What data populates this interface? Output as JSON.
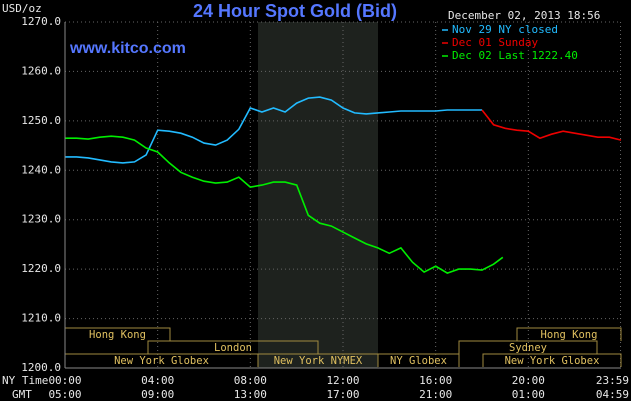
{
  "chart_data": {
    "type": "line",
    "title": "24 Hour Spot Gold (Bid)",
    "y_unit": "USD/oz",
    "site": "www.kitco.com",
    "timestamp": "December 02, 2013 18:56",
    "x_row_labels": [
      "NY Time",
      "GMT"
    ],
    "xlim": [
      0,
      24
    ],
    "xticks": [
      {
        "value": 0,
        "label": "00:00"
      },
      {
        "value": 4,
        "label": "04:00"
      },
      {
        "value": 8,
        "label": "08:00"
      },
      {
        "value": 12,
        "label": "12:00"
      },
      {
        "value": 16,
        "label": "16:00"
      },
      {
        "value": 20,
        "label": "20:00"
      },
      {
        "value": 23.98,
        "label": "23:59"
      }
    ],
    "x2ticks": [
      {
        "value": 0,
        "label": "05:00"
      },
      {
        "value": 4,
        "label": "09:00"
      },
      {
        "value": 8,
        "label": "13:00"
      },
      {
        "value": 12,
        "label": "17:00"
      },
      {
        "value": 16,
        "label": "21:00"
      },
      {
        "value": 20,
        "label": "01:00"
      },
      {
        "value": 23.98,
        "label": "04:59"
      }
    ],
    "ylim": [
      1200,
      1270
    ],
    "yticks": [
      {
        "value": 1200,
        "label": "1200.0"
      },
      {
        "value": 1210,
        "label": "1210.0"
      },
      {
        "value": 1220,
        "label": "1220.0"
      },
      {
        "value": 1230,
        "label": "1230.0"
      },
      {
        "value": 1240,
        "label": "1240.0"
      },
      {
        "value": 1250,
        "label": "1250.0"
      },
      {
        "value": 1260,
        "label": "1260.0"
      },
      {
        "value": 1270,
        "label": "1270.0"
      }
    ],
    "grid": true,
    "sessions": [
      "Hong Kong",
      "London",
      "New York Globex",
      "New York NYMEX",
      "NY Globex",
      "Sydney",
      "New York Globex",
      "Hong Kong"
    ],
    "series": [
      {
        "name": "Nov 29 NY closed",
        "color": "#22bbff",
        "x": [
          0,
          0.5,
          1,
          1.5,
          2,
          2.5,
          3,
          3.5,
          4,
          4.5,
          5,
          5.5,
          6,
          6.5,
          7,
          7.5,
          8,
          8.5,
          9,
          9.5,
          10,
          10.5,
          11,
          11.5,
          12,
          12.5,
          13,
          13.5,
          14,
          14.5,
          15,
          15.5,
          16,
          16.5,
          17,
          17.5,
          18
        ],
        "values": [
          1242.7,
          1242.7,
          1242.5,
          1242.1,
          1241.7,
          1241.5,
          1241.7,
          1243.1,
          1248.1,
          1247.9,
          1247.5,
          1246.7,
          1245.5,
          1245.1,
          1246.1,
          1248.3,
          1252.6,
          1251.8,
          1252.6,
          1251.8,
          1253.6,
          1254.6,
          1254.8,
          1254.2,
          1252.6,
          1251.6,
          1251.4,
          1251.6,
          1251.8,
          1252.0,
          1252.0,
          1252.0,
          1252.0,
          1252.2,
          1252.2,
          1252.2,
          1252.2
        ]
      },
      {
        "name": "Dec 01 Sunday",
        "color": "#ee0000",
        "x": [
          18,
          18.5,
          19,
          19.5,
          20,
          20.5,
          21,
          21.5,
          22,
          22.5,
          23,
          23.5,
          24
        ],
        "values": [
          1252.2,
          1249.2,
          1248.5,
          1248.1,
          1247.9,
          1246.5,
          1247.3,
          1247.9,
          1247.5,
          1247.1,
          1246.7,
          1246.7,
          1246.1
        ]
      },
      {
        "name": "Dec 02 Last 1222.40",
        "color": "#00ee00",
        "x": [
          0,
          0.5,
          1,
          1.5,
          2,
          2.5,
          3,
          3.5,
          4,
          4.5,
          5,
          5.5,
          6,
          6.5,
          7,
          7.5,
          8,
          8.5,
          9,
          9.5,
          10,
          10.5,
          11,
          11.5,
          12,
          12.5,
          13,
          13.5,
          14,
          14.5,
          15,
          15.5,
          16,
          16.5,
          17,
          17.5,
          18,
          18.5,
          18.9
        ],
        "values": [
          1246.5,
          1246.5,
          1246.3,
          1246.7,
          1246.9,
          1246.7,
          1246.1,
          1244.5,
          1243.7,
          1241.5,
          1239.6,
          1238.6,
          1237.8,
          1237.4,
          1237.6,
          1238.6,
          1236.6,
          1237.0,
          1237.6,
          1237.6,
          1237.0,
          1230.9,
          1229.3,
          1228.7,
          1227.5,
          1226.3,
          1225.1,
          1224.3,
          1223.2,
          1224.3,
          1221.4,
          1219.4,
          1220.6,
          1219.2,
          1220.0,
          1220.0,
          1219.8,
          1221.0,
          1222.4
        ]
      }
    ]
  }
}
